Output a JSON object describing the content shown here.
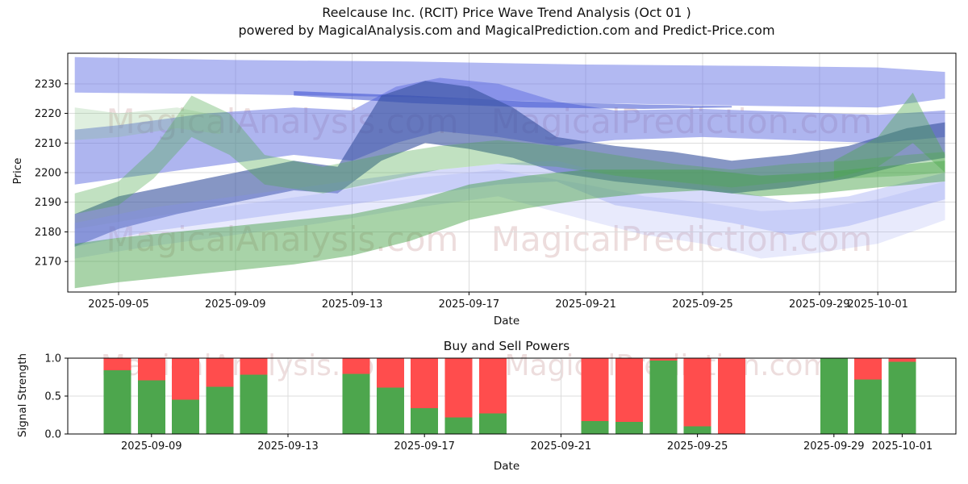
{
  "title": {
    "line1": "Reelcause Inc. (RCIT) Price Wave Trend Analysis (Oct 01 )",
    "line2": "powered by MagicalAnalysis.com and MagicalPrediction.com and Predict-Price.com"
  },
  "watermarks": {
    "left_text": "MagicalAnalysis.com",
    "right_text": "MagicalPrediction.com",
    "color": "#dfc3c3"
  },
  "chart_data": [
    {
      "name": "price-wave-trend",
      "type": "area",
      "xlabel": "Date",
      "ylabel": "Price",
      "ylim": [
        2160,
        2240
      ],
      "yticks": [
        2170,
        2180,
        2190,
        2200,
        2210,
        2220,
        2230
      ],
      "day0_date": "2025-09-03",
      "xticks": [
        {
          "label": "2025-09-05",
          "day": 2
        },
        {
          "label": "2025-09-09",
          "day": 6
        },
        {
          "label": "2025-09-13",
          "day": 10
        },
        {
          "label": "2025-09-17",
          "day": 14
        },
        {
          "label": "2025-09-21",
          "day": 18
        },
        {
          "label": "2025-09-25",
          "day": 22
        },
        {
          "label": "2025-09-29",
          "day": 26
        },
        {
          "label": "2025-10-01",
          "day": 28
        }
      ],
      "grid": true,
      "bands": [
        {
          "name": "upper-forecast-band",
          "color": "#6673e6",
          "alpha": 0.5,
          "days": [
            0.5,
            6,
            12,
            18,
            24,
            28,
            30.3
          ],
          "upper": [
            2239,
            2238,
            2237.5,
            2236.5,
            2236,
            2235.5,
            2234
          ],
          "lower": [
            2227,
            2226.5,
            2225.5,
            2223.5,
            2222.5,
            2222,
            2225
          ]
        },
        {
          "name": "mid-forecast-band",
          "color": "#5d6ce0",
          "alpha": 0.5,
          "days": [
            0.5,
            2,
            5,
            8,
            10,
            11.5,
            13,
            15,
            17,
            19,
            22,
            25,
            28,
            30.3
          ],
          "upper": [
            2214.5,
            2216,
            2220,
            2222,
            2221,
            2229,
            2232,
            2230,
            2224,
            2221,
            2221.5,
            2220.5,
            2219.5,
            2221
          ],
          "lower": [
            2196,
            2198,
            2202,
            2206,
            2204,
            2210,
            2214,
            2212,
            2209,
            2211,
            2212,
            2211,
            2210,
            2212
          ]
        },
        {
          "name": "thin-dark-band",
          "color": "#3b4fd0",
          "alpha": 0.55,
          "days": [
            8,
            12,
            16,
            20,
            23
          ],
          "upper": [
            2227.5,
            2226,
            2224,
            2223,
            2222.5
          ],
          "lower": [
            2226,
            2223.5,
            2222,
            2221.5,
            2222
          ]
        },
        {
          "name": "dark-trend-band",
          "color": "#35509c",
          "alpha": 0.6,
          "days": [
            0.5,
            2,
            4,
            6,
            8,
            9.5,
            11,
            12.5,
            14,
            15.5,
            17,
            19,
            21,
            23,
            25,
            27,
            29,
            30.3
          ],
          "upper": [
            2186,
            2192,
            2196,
            2200,
            2204,
            2202,
            2226,
            2231,
            2229,
            2222,
            2212,
            2209,
            2207,
            2204,
            2206,
            2209,
            2215,
            2217
          ],
          "lower": [
            2175,
            2181,
            2186,
            2190,
            2194,
            2193,
            2204,
            2210,
            2208,
            2205,
            2200,
            2197,
            2195,
            2193,
            2195,
            2198,
            2203,
            2205
          ]
        },
        {
          "name": "lavender-band",
          "color": "#8490ee",
          "alpha": 0.32,
          "days": [
            0.5,
            3,
            6,
            9,
            12,
            15,
            17,
            19,
            21,
            23,
            25,
            27,
            30.3
          ],
          "upper": [
            2183,
            2188,
            2192,
            2196,
            2200,
            2203,
            2204,
            2199,
            2197,
            2194,
            2190,
            2192,
            2200
          ],
          "lower": [
            2175,
            2180,
            2184,
            2188,
            2192,
            2196,
            2197,
            2189,
            2186,
            2183,
            2179,
            2182,
            2191
          ]
        },
        {
          "name": "pale-lavender-band",
          "color": "#96a0f0",
          "alpha": 0.22,
          "days": [
            0.5,
            3,
            6,
            9,
            12,
            15,
            18,
            20,
            22,
            24,
            26,
            28,
            30.3
          ],
          "upper": [
            2181,
            2185,
            2189,
            2193,
            2198,
            2201,
            2196,
            2192,
            2190,
            2187,
            2188,
            2191,
            2197
          ],
          "lower": [
            2171,
            2175,
            2179,
            2183,
            2188,
            2192,
            2184,
            2179,
            2176,
            2171,
            2173,
            2176,
            2184
          ]
        },
        {
          "name": "green-base-band",
          "color": "#3f9e3f",
          "alpha": 0.45,
          "days": [
            0.5,
            2,
            4,
            6,
            8,
            10,
            12,
            14,
            16,
            18,
            20,
            22,
            24,
            26,
            28,
            30.3
          ],
          "upper": [
            2176,
            2178,
            2180,
            2182,
            2184,
            2186,
            2190,
            2196,
            2199,
            2201,
            2201,
            2201,
            2199,
            2200,
            2202,
            2204
          ],
          "lower": [
            2161,
            2163,
            2165,
            2167,
            2169,
            2172,
            2177,
            2184,
            2188,
            2191,
            2193,
            2194,
            2192,
            2193,
            2195,
            2197
          ]
        },
        {
          "name": "green-mid-band",
          "color": "#4ca84c",
          "alpha": 0.35,
          "days": [
            0.5,
            2,
            3.2,
            4.5,
            5.8,
            7,
            9,
            11,
            13,
            15,
            17,
            19,
            21,
            23,
            25,
            27,
            29,
            30.3
          ],
          "upper": [
            2193,
            2197,
            2208,
            2226,
            2220,
            2206,
            2202,
            2206,
            2209,
            2211,
            2209,
            2206,
            2203,
            2201,
            2203,
            2204,
            2206,
            2207
          ],
          "lower": [
            2186,
            2189,
            2198,
            2212,
            2206,
            2196,
            2193,
            2197,
            2201,
            2203,
            2202,
            2199,
            2197,
            2195,
            2197,
            2198,
            2199,
            2200
          ]
        },
        {
          "name": "green-spike-band",
          "color": "#4ca84c",
          "alpha": 0.4,
          "days": [
            26.5,
            28,
            29.2,
            30.3
          ],
          "upper": [
            2204,
            2212,
            2227,
            2206
          ],
          "lower": [
            2198,
            2202,
            2210,
            2200
          ]
        },
        {
          "name": "pale-green-band",
          "color": "#7fbf7f",
          "alpha": 0.25,
          "days": [
            0.5,
            2,
            4,
            5.5
          ],
          "upper": [
            2222,
            2220,
            2222,
            2219
          ],
          "lower": [
            2211,
            2212,
            2215,
            2213
          ]
        }
      ]
    },
    {
      "name": "buy-sell-powers",
      "type": "bar",
      "stacked": true,
      "title": "Buy and Sell Powers",
      "xlabel": "Date",
      "ylabel": "Signal Strength",
      "ylim": [
        0,
        1
      ],
      "ytick_labels": [
        "0.0",
        "0.5",
        "1.0"
      ],
      "ytick_values": [
        0,
        0.5,
        1
      ],
      "xticks": [
        {
          "label": "2025-09-09",
          "day": 6
        },
        {
          "label": "2025-09-13",
          "day": 10
        },
        {
          "label": "2025-09-17",
          "day": 14
        },
        {
          "label": "2025-09-21",
          "day": 18
        },
        {
          "label": "2025-09-25",
          "day": 22
        },
        {
          "label": "2025-09-29",
          "day": 26
        },
        {
          "label": "2025-10-01",
          "day": 28
        }
      ],
      "series_colors": {
        "buy": "#4da64d",
        "sell": "#ff4d4d"
      },
      "bars": [
        {
          "date": "2025-09-08",
          "day": 5,
          "buy": 0.84,
          "sell": 0.16
        },
        {
          "date": "2025-09-09",
          "day": 6,
          "buy": 0.71,
          "sell": 0.29
        },
        {
          "date": "2025-09-10",
          "day": 7,
          "buy": 0.45,
          "sell": 0.55
        },
        {
          "date": "2025-09-11",
          "day": 8,
          "buy": 0.62,
          "sell": 0.38
        },
        {
          "date": "2025-09-12",
          "day": 9,
          "buy": 0.78,
          "sell": 0.22
        },
        {
          "date": "2025-09-15",
          "day": 12,
          "buy": 0.79,
          "sell": 0.21
        },
        {
          "date": "2025-09-16",
          "day": 13,
          "buy": 0.61,
          "sell": 0.39
        },
        {
          "date": "2025-09-17",
          "day": 14,
          "buy": 0.34,
          "sell": 0.66
        },
        {
          "date": "2025-09-18",
          "day": 15,
          "buy": 0.22,
          "sell": 0.78
        },
        {
          "date": "2025-09-19",
          "day": 16,
          "buy": 0.27,
          "sell": 0.73
        },
        {
          "date": "2025-09-22",
          "day": 19,
          "buy": 0.17,
          "sell": 0.83
        },
        {
          "date": "2025-09-23",
          "day": 20,
          "buy": 0.16,
          "sell": 0.84
        },
        {
          "date": "2025-09-24",
          "day": 21,
          "buy": 0.97,
          "sell": 0.03
        },
        {
          "date": "2025-09-25",
          "day": 22,
          "buy": 0.1,
          "sell": 0.9
        },
        {
          "date": "2025-09-26",
          "day": 23,
          "buy": 0.0,
          "sell": 1.0
        },
        {
          "date": "2025-09-29",
          "day": 26,
          "buy": 1.0,
          "sell": 0.0
        },
        {
          "date": "2025-09-30",
          "day": 27,
          "buy": 0.72,
          "sell": 0.28
        },
        {
          "date": "2025-10-01",
          "day": 28,
          "buy": 0.95,
          "sell": 0.05
        }
      ]
    }
  ]
}
